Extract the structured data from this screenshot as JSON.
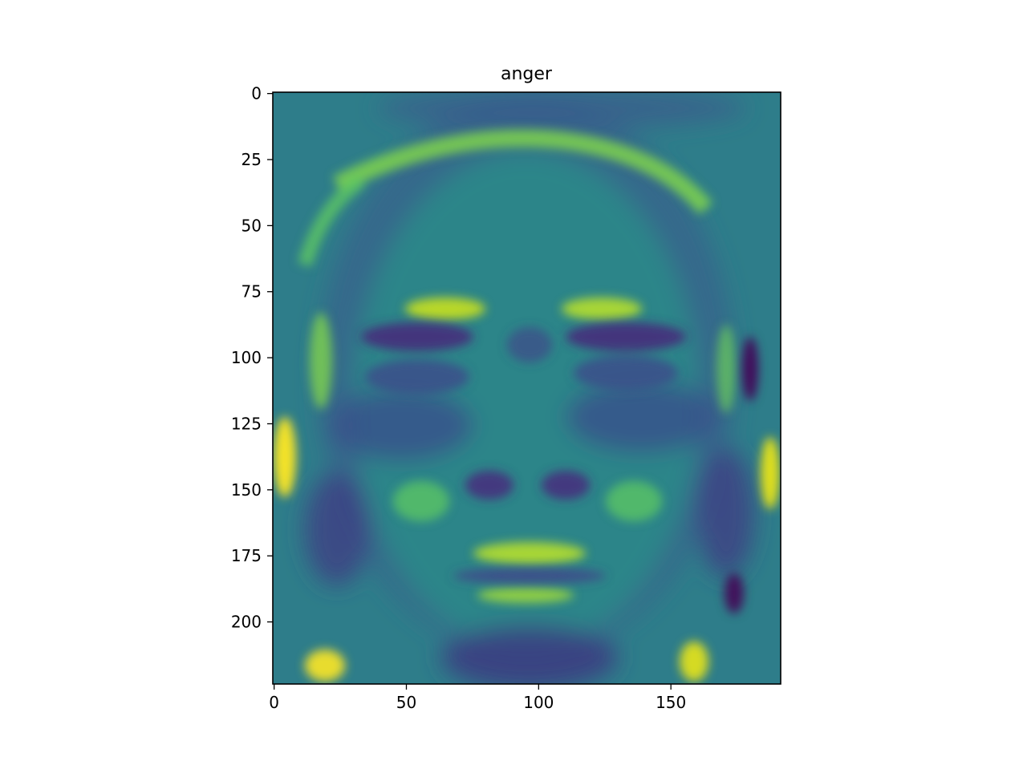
{
  "chart_data": {
    "type": "heatmap",
    "title": "anger",
    "xlabel": "",
    "ylabel": "",
    "colormap": "viridis",
    "image_width": 192,
    "image_height": 224,
    "xlim": [
      -0.5,
      191.5
    ],
    "ylim": [
      223.5,
      -0.5
    ],
    "x_ticks": [
      0,
      50,
      100,
      150
    ],
    "y_ticks": [
      0,
      25,
      50,
      75,
      100,
      125,
      150,
      175,
      200
    ],
    "x_tick_labels": [
      "0",
      "50",
      "100",
      "150"
    ],
    "y_tick_labels": [
      "0",
      "25",
      "50",
      "75",
      "100",
      "125",
      "150",
      "175",
      "200"
    ],
    "grid": false
  },
  "colors": {
    "viridis_dark": "#440154",
    "viridis_purple": "#3b528b",
    "viridis_teal": "#21918c",
    "viridis_green": "#5ec962",
    "viridis_yellow": "#fde725"
  }
}
